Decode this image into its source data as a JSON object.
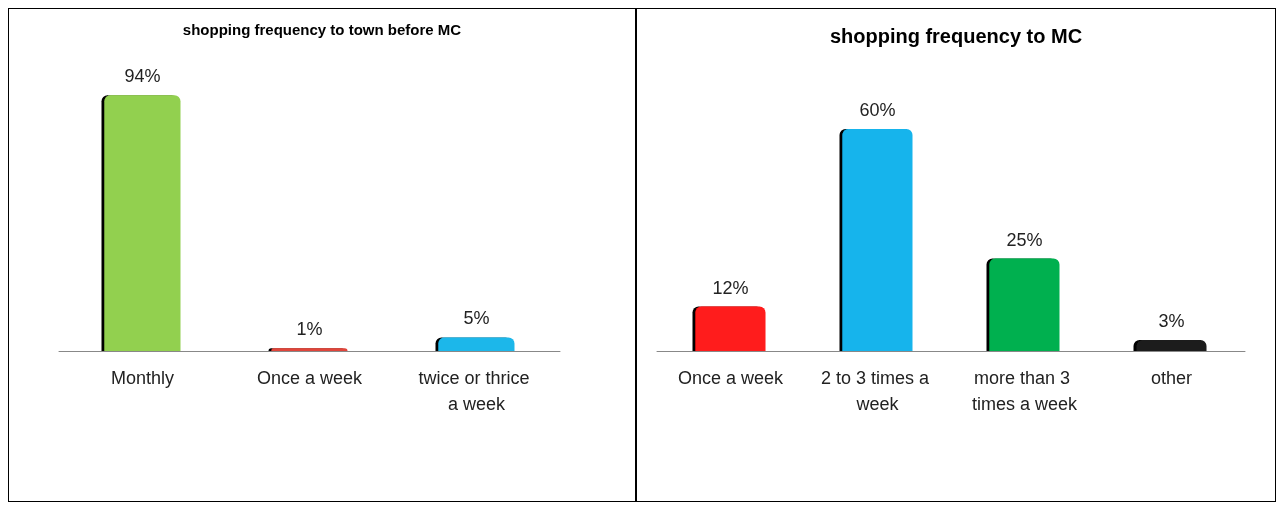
{
  "chart_data": [
    {
      "type": "bar",
      "title": "shopping frequency to town before MC",
      "categories": [
        "Monthly",
        "Once a week",
        "twice or thrice a week"
      ],
      "values": [
        94,
        1,
        5
      ],
      "value_labels": [
        "94%",
        "1%",
        "5%"
      ],
      "colors": [
        "#92d050",
        "#e0453a",
        "#1fb7ea"
      ]
    },
    {
      "type": "bar",
      "title": "shopping frequency to MC",
      "categories": [
        "Once a week",
        "2 to 3 times a week",
        "more than 3 times a week",
        "other"
      ],
      "values": [
        12,
        60,
        25,
        3
      ],
      "value_labels": [
        "12%",
        "60%",
        "25%",
        "3%"
      ],
      "colors": [
        "#ff1a1a",
        "#19b4ec",
        "#00b050",
        "#1a1a1a"
      ]
    }
  ]
}
